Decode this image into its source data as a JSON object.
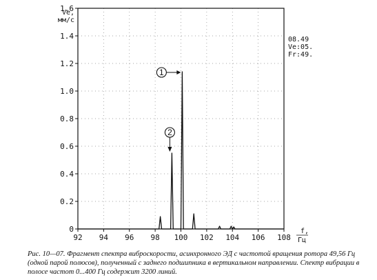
{
  "chart_data": {
    "type": "line",
    "ylabel": "Ve,",
    "yunit": "мм/с",
    "xlabel": "f,",
    "xunit": "Гц",
    "xlim": [
      92,
      108
    ],
    "ylim": [
      0,
      1.6
    ],
    "xticks": [
      92,
      94,
      96,
      98,
      100,
      102,
      104,
      106,
      108
    ],
    "yticks": [
      0,
      0.2,
      0.4,
      0.6,
      0.8,
      1.0,
      1.2,
      1.4,
      1.6
    ],
    "ytick_labels": [
      "0",
      "0.2",
      "0.4",
      "0.6",
      "0.8",
      "1.0",
      "1.2",
      "1.4",
      "1.6"
    ],
    "grid": true,
    "series": [
      {
        "x": [
          92.0,
          98.3,
          98.4,
          98.5,
          98.6,
          99.0,
          99.2,
          99.3,
          99.4,
          99.6,
          99.9,
          100.0,
          100.1,
          100.2,
          100.6,
          100.9,
          101.0,
          101.1,
          101.3,
          102.9,
          103.0,
          103.1,
          103.8,
          103.9,
          104.0,
          104.1,
          104.2,
          108.0
        ],
        "y": [
          0.0,
          0.0,
          0.09,
          0.0,
          0.0,
          0.0,
          0.0,
          0.55,
          0.0,
          0.0,
          0.0,
          0.0,
          1.14,
          0.0,
          0.0,
          0.0,
          0.11,
          0.0,
          0.0,
          0.0,
          0.02,
          0.0,
          0.0,
          0.02,
          0.0,
          0.015,
          0.0,
          0.0
        ]
      }
    ],
    "annotations": [
      {
        "label": "1",
        "x": 100.1,
        "y": 1.14
      },
      {
        "label": "2",
        "x": 99.3,
        "y": 0.55
      }
    ],
    "readout": [
      "08.49",
      "Ve:05.",
      "Fr:49."
    ]
  },
  "caption": "Рис. 10—07. Фрагмент спектра виброскорости, асинхронного ЭД с частотой вращения ротора 49,56 Гц (одной парой полюсов), полученный с заднего подшипника в вертикальном направлении. Спектр вибрации в полосе частот 0...400 Гц содержит 3200 линий."
}
